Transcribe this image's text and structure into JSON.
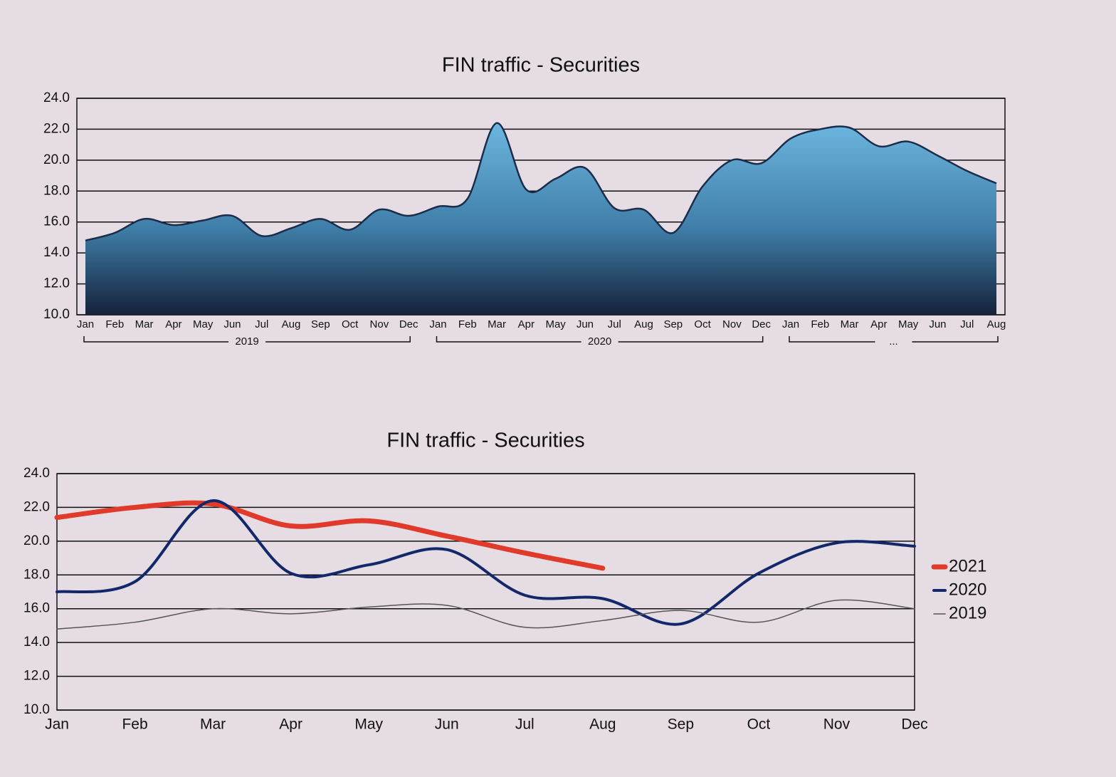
{
  "chart_data": [
    {
      "type": "area",
      "title": "FIN traffic - Securities",
      "categories": [
        "Jan",
        "Feb",
        "Mar",
        "Apr",
        "May",
        "Jun",
        "Jul",
        "Aug",
        "Sep",
        "Oct",
        "Nov",
        "Dec",
        "Jan",
        "Feb",
        "Mar",
        "Apr",
        "May",
        "Jun",
        "Jul",
        "Aug",
        "Sep",
        "Oct",
        "Nov",
        "Dec",
        "Jan",
        "Feb",
        "Mar",
        "Apr",
        "May",
        "Jun",
        "Jul",
        "Aug"
      ],
      "groups": [
        "2019",
        "2020",
        "..."
      ],
      "values": [
        14.8,
        15.3,
        16.2,
        15.8,
        16.1,
        16.4,
        15.1,
        15.6,
        16.2,
        15.5,
        16.8,
        16.4,
        17.0,
        17.5,
        22.4,
        18.1,
        18.8,
        19.5,
        16.9,
        16.8,
        15.3,
        18.3,
        20.0,
        19.8,
        21.4,
        22.0,
        22.1,
        20.9,
        21.2,
        20.3,
        19.3,
        18.5
      ],
      "color": "#5aa6d2",
      "ylim": [
        10,
        24
      ],
      "yticks": [
        {
          "value": 10,
          "label": "10.0"
        },
        {
          "value": 12,
          "label": "12.0"
        },
        {
          "value": 14,
          "label": "14.0"
        },
        {
          "value": 16,
          "label": "16.0"
        },
        {
          "value": 18,
          "label": "18.0"
        },
        {
          "value": 20,
          "label": "20.0"
        },
        {
          "value": 22,
          "label": "22.0"
        },
        {
          "value": 24,
          "label": "24.0"
        }
      ],
      "grid": true
    },
    {
      "type": "line",
      "title": "FIN traffic - Securities",
      "categories": [
        "Jan",
        "Feb",
        "Mar",
        "Apr",
        "May",
        "Jun",
        "Jul",
        "Aug",
        "Sep",
        "Oct",
        "Nov",
        "Dec"
      ],
      "series": [
        {
          "name": "2021",
          "color": "#e03a2a",
          "values": [
            21.4,
            22.0,
            22.2,
            20.9,
            21.2,
            20.3,
            19.3,
            18.4,
            null,
            null,
            null,
            null
          ]
        },
        {
          "name": "2020",
          "color": "#13286a",
          "values": [
            17.0,
            17.6,
            22.4,
            18.1,
            18.6,
            19.5,
            16.8,
            16.6,
            15.1,
            18.1,
            19.9,
            19.7
          ]
        },
        {
          "name": "2019",
          "color": "#555555",
          "values": [
            14.8,
            15.2,
            16.0,
            15.7,
            16.1,
            16.2,
            14.9,
            15.3,
            15.9,
            15.2,
            16.5,
            16.0
          ]
        }
      ],
      "ylim": [
        10,
        24
      ],
      "yticks": [
        {
          "value": 10,
          "label": "10.0"
        },
        {
          "value": 12,
          "label": "12.0"
        },
        {
          "value": 14,
          "label": "14.0"
        },
        {
          "value": 16,
          "label": "16.0"
        },
        {
          "value": 18,
          "label": "18.0"
        },
        {
          "value": 20,
          "label": "20.0"
        },
        {
          "value": 22,
          "label": "22.0"
        },
        {
          "value": 24,
          "label": "24.0"
        }
      ],
      "grid": true,
      "legend": "right"
    }
  ]
}
